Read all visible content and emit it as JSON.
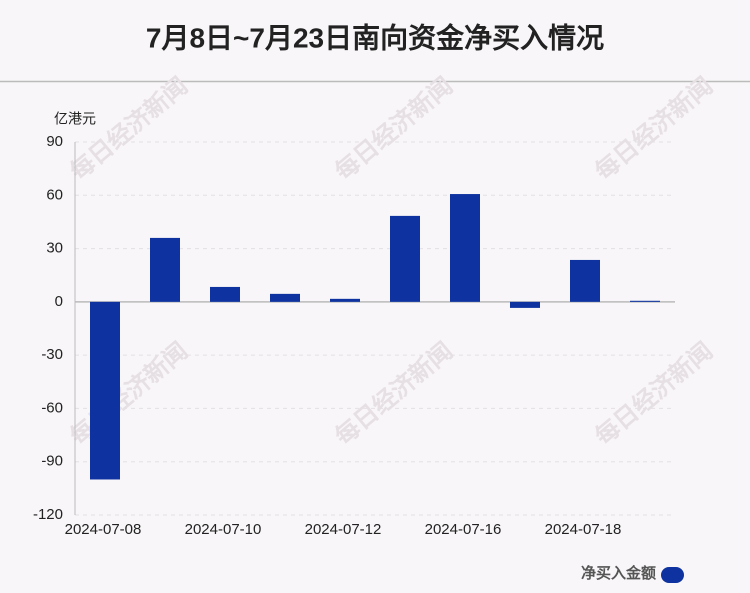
{
  "chart_data": {
    "type": "bar",
    "title": "7月8日~7月23日南向资金净买入情况",
    "y_unit": "亿港元",
    "watermark": "每日经济新闻",
    "categories": [
      "2024-07-08",
      null,
      "2024-07-10",
      null,
      "2024-07-12",
      null,
      "2024-07-16",
      null,
      "2024-07-18",
      null
    ],
    "series": [
      {
        "name": "净买入金额",
        "color": "#0e33a0",
        "values": [
          -100,
          36,
          8.4,
          4.5,
          1.7,
          48.4,
          60.7,
          -3.4,
          23.6,
          0.6
        ]
      }
    ],
    "ylim": [
      -120,
      90
    ],
    "yticks": [
      90,
      60,
      30,
      0,
      -30,
      -60,
      -90,
      -120
    ],
    "grid": true
  }
}
